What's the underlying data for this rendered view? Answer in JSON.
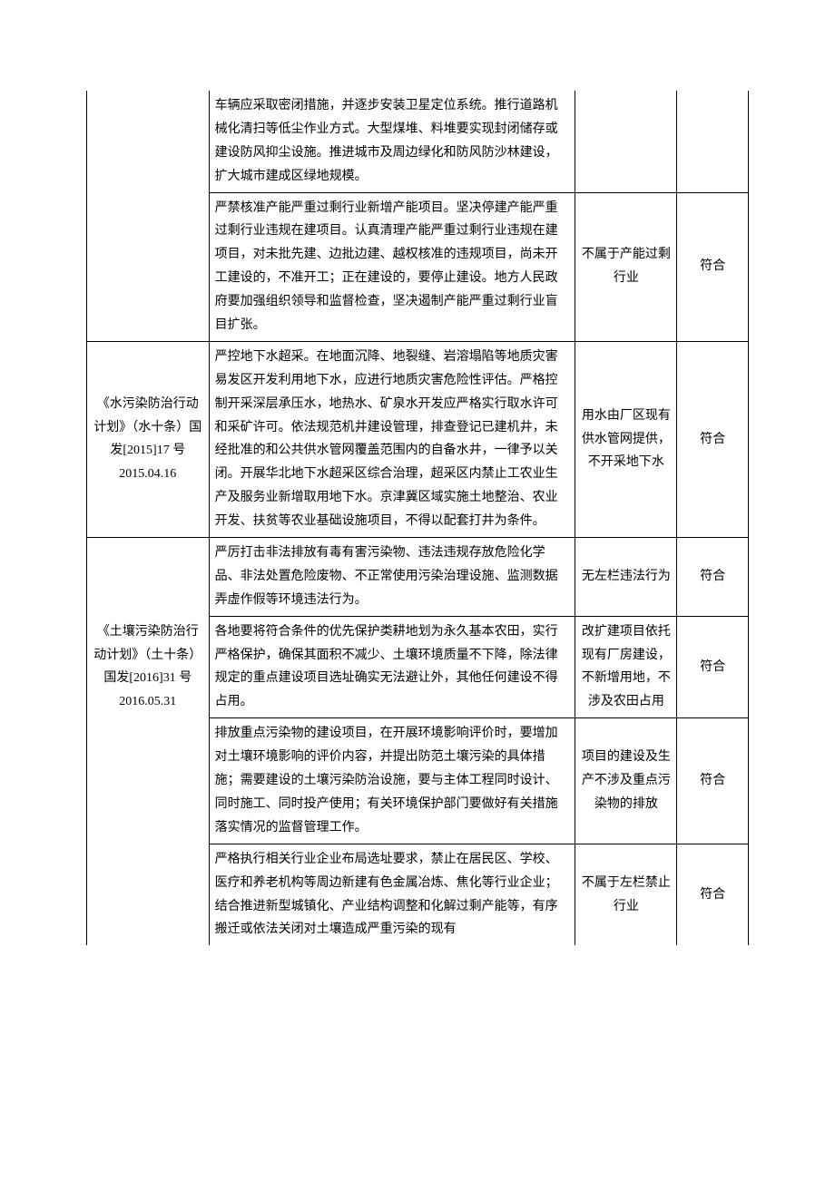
{
  "table": {
    "rows": [
      {
        "col1": "",
        "col2": "车辆应采取密闭措施，并逐步安装卫星定位系统。推行道路机械化清扫等低尘作业方式。大型煤堆、料堆要实现封闭储存或建设防风抑尘设施。推进城市及周边绿化和防风防沙林建设，扩大城市建成区绿地规模。",
        "col3": "",
        "col4": "",
        "col1_class": "no-top no-bottom",
        "col2_class": "no-top",
        "col3_class": "no-top",
        "col4_class": "no-top"
      },
      {
        "col1": "",
        "col2": "严禁核准产能严重过剩行业新增产能项目。坚决停建产能严重过剩行业违规在建项目。认真清理产能严重过剩行业违规在建项目，对未批先建、边批边建、越权核准的违规项目，尚未开工建设的，不准开工；正在建设的，要停止建设。地方人民政府要加强组织领导和监督检查，坚决遏制产能严重过剩行业盲目扩张。",
        "col3": "不属于产能过剩行业",
        "col4": "符合",
        "col1_class": "no-top",
        "col2_class": "",
        "col3_class": "",
        "col4_class": ""
      },
      {
        "col1": "《水污染防治行动计划》（水十条）国发[2015]17 号 2015.04.16",
        "col2": "严控地下水超采。在地面沉降、地裂缝、岩溶塌陷等地质灾害易发区开发利用地下水，应进行地质灾害危险性评估。严格控制开采深层承压水，地热水、矿泉水开发应严格实行取水许可和采矿许可。依法规范机井建设管理，排查登记已建机井，未经批准的和公共供水管网覆盖范围内的自备水井，一律予以关闭。开展华北地下水超采区综合治理，超采区内禁止工农业生产及服务业新增取用地下水。京津冀区域实施土地整治、农业开发、扶贫等农业基础设施项目，不得以配套打井为条件。",
        "col3": "用水由厂区现有供水管网提供，不开采地下水",
        "col4": "符合",
        "col1_class": "",
        "col2_class": "",
        "col3_class": "",
        "col4_class": ""
      },
      {
        "col1": "",
        "col2": "严厉打击非法排放有毒有害污染物、违法违规存放危险化学品、非法处置危险废物、不正常使用污染治理设施、监测数据弄虚作假等环境违法行为。",
        "col3": "无左栏违法行为",
        "col4": "符合",
        "col1_class": "no-bottom",
        "col2_class": "",
        "col3_class": "",
        "col4_class": ""
      },
      {
        "col1": "《土壤污染防治行动计划》（土十条）国发[2016]31 号 2016.05.31",
        "col2": "各地要将符合条件的优先保护类耕地划为永久基本农田，实行严格保护，确保其面积不减少、土壤环境质量不下降，除法律规定的重点建设项目选址确实无法避让外，其他任何建设不得占用。",
        "col3": "改扩建项目依托现有厂房建设，不新增用地，不涉及农田占用",
        "col4": "符合",
        "col1_class": "no-top no-bottom",
        "col2_class": "",
        "col3_class": "",
        "col4_class": ""
      },
      {
        "col1": "",
        "col2": "排放重点污染物的建设项目，在开展环境影响评价时，要增加对土壤环境影响的评价内容，并提出防范土壤污染的具体措施；需要建设的土壤污染防治设施，要与主体工程同时设计、同时施工、同时投产使用；有关环境保护部门要做好有关措施落实情况的监督管理工作。",
        "col3": "项目的建设及生产不涉及重点污染物的排放",
        "col4": "符合",
        "col1_class": "no-top no-bottom",
        "col2_class": "",
        "col3_class": "",
        "col4_class": ""
      },
      {
        "col1": "",
        "col2": "严格执行相关行业企业布局选址要求，禁止在居民区、学校、医疗和养老机构等周边新建有色金属冶炼、焦化等行业企业；结合推进新型城镇化、产业结构调整和化解过剩产能等，有序搬迁或依法关闭对土壤造成严重污染的现有",
        "col3": "不属于左栏禁止行业",
        "col4": "符合",
        "col1_class": "no-top no-bottom",
        "col2_class": "no-bottom",
        "col3_class": "no-bottom",
        "col4_class": "no-bottom"
      }
    ]
  }
}
